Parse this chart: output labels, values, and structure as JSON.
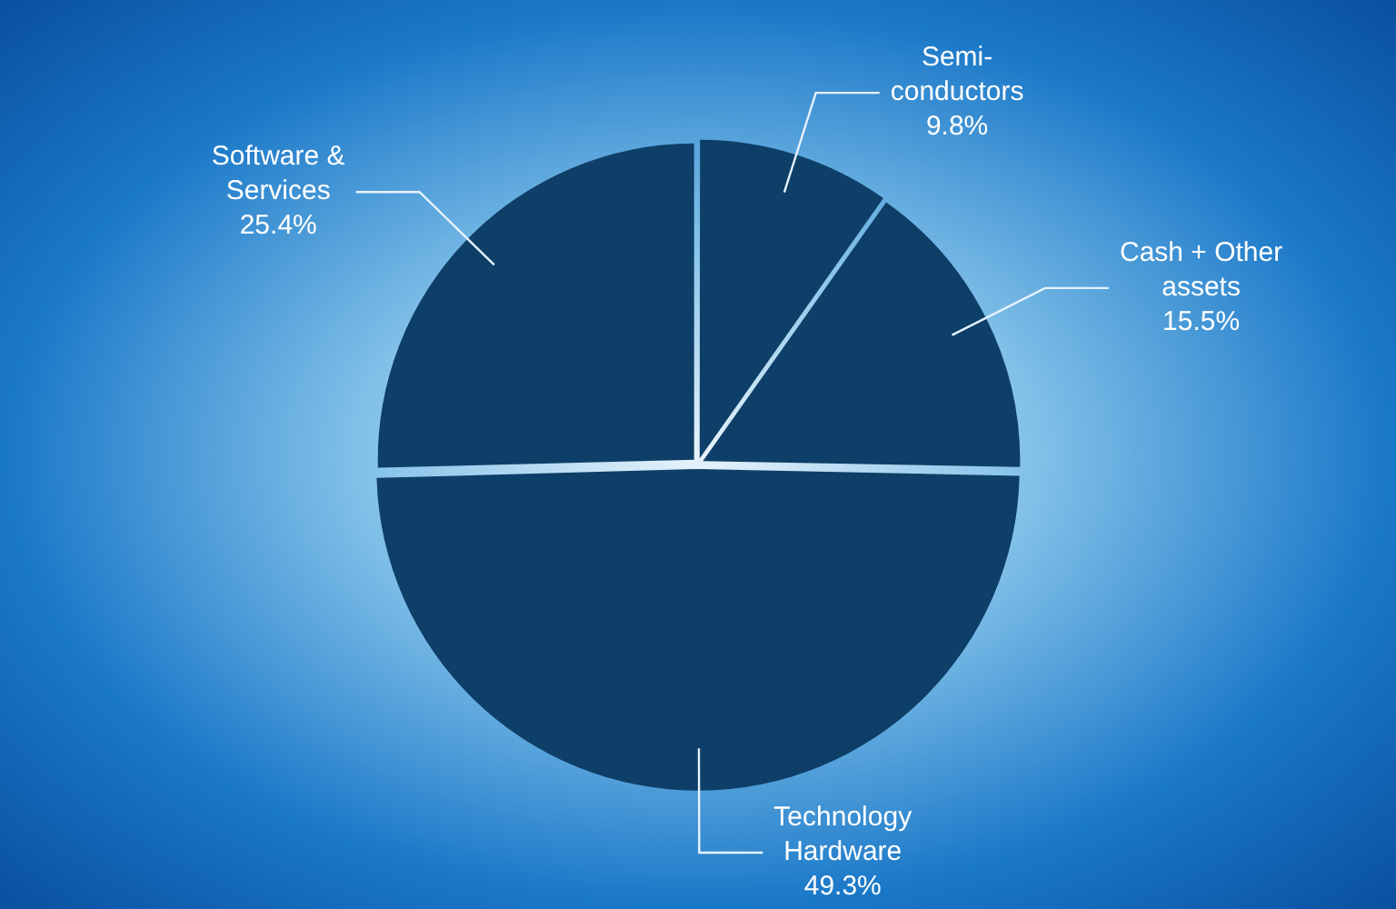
{
  "chart_data": {
    "type": "pie",
    "categories": [
      "Semi-conductors",
      "Cash + Other assets",
      "Technology Hardware",
      "Software & Services"
    ],
    "values": [
      9.8,
      15.5,
      49.3,
      25.4
    ],
    "colors": [
      "#0e3f68",
      "#0e3f68",
      "#0e3f68",
      "#0e3f68"
    ],
    "value_labels": [
      "9.8%",
      "15.5%",
      "49.3%",
      "25.4%"
    ],
    "legend": false
  }
}
